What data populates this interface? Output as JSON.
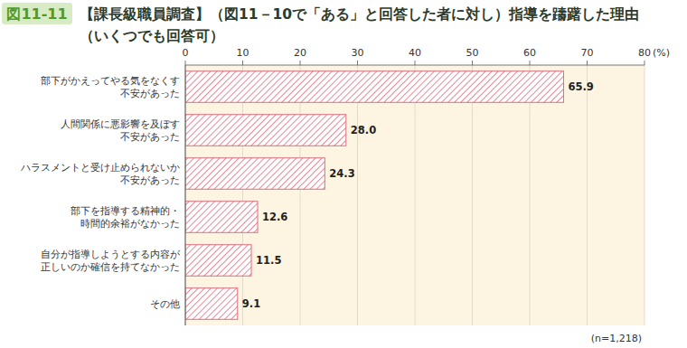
{
  "chart_data": {
    "type": "bar",
    "orientation": "horizontal",
    "figure_label": "図11-11",
    "title": "【課長級職員調査】（図11－10で「ある」と回答した者に対し）指導を躊躇した理由",
    "subtitle": "（いくつでも回答可）",
    "x_label": "(%)",
    "note": "(n=1,218)",
    "categories": [
      "部下がかえってやる気をなくす\n不安があった",
      "人間関係に悪影響を及ぼす\n不安があった",
      "ハラスメントと受け止められないか\n不安があった",
      "部下を指導する精神的・\n時間的余裕がなかった",
      "自分が指導しようとする内容が\n正しいのか確信を持てなかった",
      "その他"
    ],
    "values": [
      65.9,
      28.0,
      24.3,
      12.6,
      11.5,
      9.1
    ],
    "value_labels": [
      "65.9",
      "28.0",
      "24.3",
      "12.6",
      "11.5",
      "9.1"
    ],
    "color": "#e06b7d",
    "xlim": [
      0,
      80
    ],
    "xticks": [
      0,
      10,
      20,
      30,
      40,
      50,
      60,
      70,
      80
    ],
    "grid": true,
    "data_labels": true
  }
}
